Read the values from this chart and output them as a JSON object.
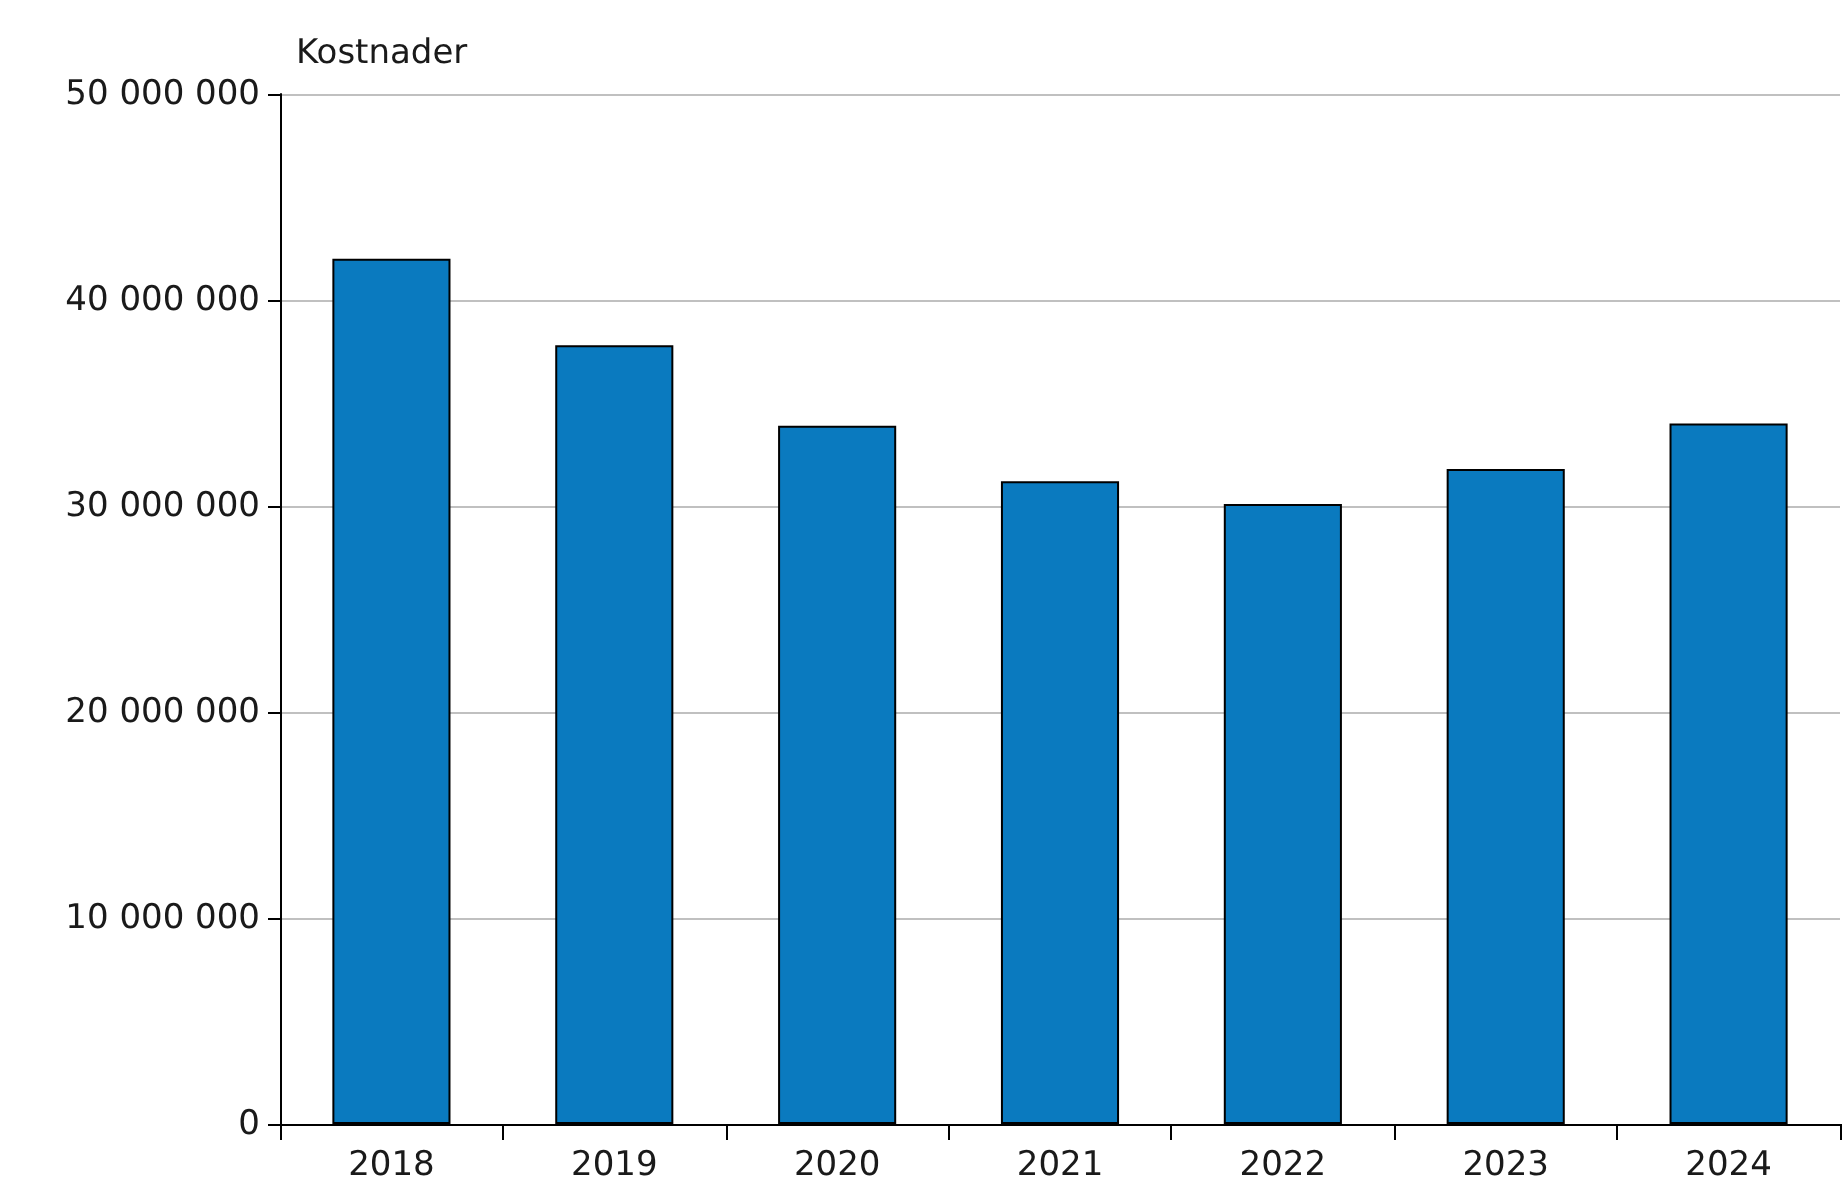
{
  "chart_data": {
    "type": "bar",
    "ylabel": "Kostnader",
    "categories": [
      "2018",
      "2019",
      "2020",
      "2021",
      "2022",
      "2023",
      "2024"
    ],
    "values": [
      42000000,
      37800000,
      33900000,
      31200000,
      30100000,
      31800000,
      34000000
    ],
    "color": "#0a7abf",
    "ylim": [
      0,
      50000000
    ],
    "yticks": [
      {
        "value": 0,
        "label": "0"
      },
      {
        "value": 10000000,
        "label": "10 000 000"
      },
      {
        "value": 20000000,
        "label": "20 000 000"
      },
      {
        "value": 30000000,
        "label": "30 000 000"
      },
      {
        "value": 40000000,
        "label": "40 000 000"
      },
      {
        "value": 50000000,
        "label": "50 000 000"
      }
    ],
    "grid": "y"
  }
}
